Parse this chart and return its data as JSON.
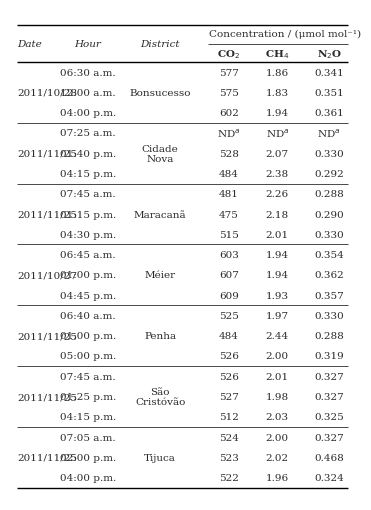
{
  "col_header_top": "Concentration / (μmol mol⁻¹)",
  "rows": [
    [
      "",
      "06:30 a.m.",
      "",
      "577",
      "1.86",
      "0.341"
    ],
    [
      "2011/10/28",
      "12:00 a.m.",
      "Bonsucesso",
      "575",
      "1.83",
      "0.351"
    ],
    [
      "",
      "04:00 p.m.",
      "",
      "602",
      "1.94",
      "0.361"
    ],
    [
      "",
      "07:25 a.m.",
      "",
      "ND$^a$",
      "ND$^a$",
      "ND$^a$"
    ],
    [
      "2011/11/25",
      "01:40 p.m.",
      "Cidade\nNova",
      "528",
      "2.07",
      "0.330"
    ],
    [
      "",
      "04:15 p.m.",
      "",
      "484",
      "2.38",
      "0.292"
    ],
    [
      "",
      "07:45 a.m.",
      "",
      "481",
      "2.26",
      "0.288"
    ],
    [
      "2011/11/25",
      "01:15 p.m.",
      "Maracanã",
      "475",
      "2.18",
      "0.290"
    ],
    [
      "",
      "04:30 p.m.",
      "",
      "515",
      "2.01",
      "0.330"
    ],
    [
      "",
      "06:45 a.m.",
      "",
      "603",
      "1.94",
      "0.354"
    ],
    [
      "2011/10/27",
      "01:00 p.m.",
      "Méier",
      "607",
      "1.94",
      "0.362"
    ],
    [
      "",
      "04:45 p.m.",
      "",
      "609",
      "1.93",
      "0.357"
    ],
    [
      "",
      "06:40 a.m.",
      "",
      "525",
      "1.97",
      "0.330"
    ],
    [
      "2011/11/25",
      "01:00 p.m.",
      "Penha",
      "484",
      "2.44",
      "0.288"
    ],
    [
      "",
      "05:00 p.m.",
      "",
      "526",
      "2.00",
      "0.319"
    ],
    [
      "",
      "07:45 a.m.",
      "",
      "526",
      "2.01",
      "0.327"
    ],
    [
      "2011/11/25",
      "01:25 p.m.",
      "São\nCristóvão",
      "527",
      "1.98",
      "0.327"
    ],
    [
      "",
      "04:15 p.m.",
      "",
      "512",
      "2.03",
      "0.325"
    ],
    [
      "",
      "07:05 a.m.",
      "",
      "524",
      "2.00",
      "0.327"
    ],
    [
      "2011/11/25",
      "02:00 p.m.",
      "Tijuca",
      "523",
      "2.02",
      "0.468"
    ],
    [
      "",
      "04:00 p.m.",
      "",
      "522",
      "1.96",
      "0.324"
    ]
  ],
  "group_ends": [
    3,
    6,
    9,
    12,
    15,
    18
  ],
  "bg_color": "#ffffff",
  "text_color": "#2b2b2b",
  "fontsize": 7.5,
  "lw_thick": 1.0,
  "lw_thin": 0.5
}
